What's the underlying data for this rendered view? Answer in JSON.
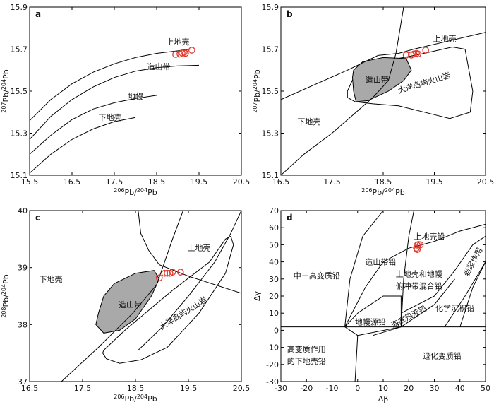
{
  "chart_data": [
    {
      "id": "a",
      "type": "scatter",
      "panel_label": "a",
      "xlabel_parts": [
        "206",
        "Pb/",
        "204",
        "Pb"
      ],
      "ylabel_parts": [
        "207",
        "Pb/",
        "204",
        "Pb"
      ],
      "xlim": [
        15.5,
        20.5
      ],
      "ylim": [
        15.1,
        15.9
      ],
      "xticks": [
        "15.5",
        "16.5",
        "17.5",
        "18.5",
        "19.5",
        "20.5"
      ],
      "yticks": [
        "15.1",
        "15.3",
        "15.5",
        "15.7",
        "15.9"
      ],
      "curves": [
        {
          "name": "上地壳",
          "points": [
            [
              15.5,
              15.36
            ],
            [
              16.0,
              15.46
            ],
            [
              16.5,
              15.535
            ],
            [
              17.0,
              15.59
            ],
            [
              17.5,
              15.63
            ],
            [
              18.0,
              15.66
            ],
            [
              18.5,
              15.68
            ],
            [
              19.0,
              15.692
            ],
            [
              19.3,
              15.7
            ]
          ]
        },
        {
          "name": "造山带",
          "points": [
            [
              15.5,
              15.27
            ],
            [
              16.0,
              15.38
            ],
            [
              16.5,
              15.46
            ],
            [
              17.0,
              15.52
            ],
            [
              17.5,
              15.565
            ],
            [
              18.0,
              15.595
            ],
            [
              18.5,
              15.612
            ],
            [
              19.0,
              15.62
            ],
            [
              19.5,
              15.623
            ]
          ]
        },
        {
          "name": "地幔",
          "points": [
            [
              15.5,
              15.2
            ],
            [
              16.0,
              15.29
            ],
            [
              16.5,
              15.365
            ],
            [
              17.0,
              15.415
            ],
            [
              17.5,
              15.445
            ],
            [
              18.0,
              15.465
            ],
            [
              18.5,
              15.48
            ]
          ]
        },
        {
          "name": "下地壳",
          "points": [
            [
              15.5,
              15.11
            ],
            [
              16.0,
              15.2
            ],
            [
              16.5,
              15.27
            ],
            [
              17.0,
              15.32
            ],
            [
              17.5,
              15.355
            ],
            [
              18.0,
              15.375
            ]
          ]
        }
      ],
      "regions": [
        {
          "label": "上地壳",
          "x": 19.0,
          "y": 15.735
        },
        {
          "label": "造山带",
          "x": 18.55,
          "y": 15.617
        },
        {
          "label": "地幔",
          "x": 18.0,
          "y": 15.477
        },
        {
          "label": "下地壳",
          "x": 17.4,
          "y": 15.375
        }
      ],
      "samples": [
        [
          18.95,
          15.675
        ],
        [
          19.05,
          15.677
        ],
        [
          19.1,
          15.682
        ],
        [
          19.15,
          15.685
        ],
        [
          19.18,
          15.68
        ],
        [
          19.33,
          15.695
        ]
      ]
    },
    {
      "id": "b",
      "type": "scatter",
      "panel_label": "b",
      "xlabel_parts": [
        "206",
        "Pb/",
        "204",
        "Pb"
      ],
      "ylabel_parts": [
        "207",
        "Pb/",
        "204",
        "Pb"
      ],
      "xlim": [
        16.5,
        20.5
      ],
      "ylim": [
        15.1,
        15.9
      ],
      "xticks": [
        "16.5",
        "17.5",
        "18.5",
        "19.5",
        "20.5"
      ],
      "yticks": [
        "15.1",
        "15.3",
        "15.5",
        "15.7",
        "15.9"
      ],
      "boundaries": [
        {
          "name": "下地壳边界",
          "points": [
            [
              16.5,
              15.46
            ],
            [
              17.8,
              15.6
            ],
            [
              18.4,
              15.67
            ],
            [
              18.8,
              15.68
            ],
            [
              19.1,
              15.7
            ],
            [
              20.5,
              15.78
            ]
          ]
        },
        {
          "name": "上地壳边界",
          "points": [
            [
              18.9,
              15.9
            ],
            [
              18.75,
              15.68
            ],
            [
              18.6,
              15.55
            ],
            [
              18.3,
              15.47
            ],
            [
              17.5,
              15.3
            ],
            [
              16.95,
              15.2
            ],
            [
              16.5,
              15.1
            ]
          ]
        }
      ],
      "gray_field": {
        "name": "造山带",
        "points": [
          [
            17.9,
            15.565
          ],
          [
            17.92,
            15.6
          ],
          [
            18.1,
            15.64
          ],
          [
            18.5,
            15.66
          ],
          [
            18.95,
            15.655
          ],
          [
            19.05,
            15.6
          ],
          [
            18.9,
            15.55
          ],
          [
            18.6,
            15.5
          ],
          [
            18.2,
            15.455
          ],
          [
            17.97,
            15.45
          ],
          [
            17.92,
            15.5
          ]
        ]
      },
      "ocean_field": {
        "name": "大洋岛屿火山岩",
        "points": [
          [
            17.8,
            15.5
          ],
          [
            17.95,
            15.58
          ],
          [
            18.4,
            15.64
          ],
          [
            18.9,
            15.66
          ],
          [
            19.3,
            15.68
          ],
          [
            19.85,
            15.71
          ],
          [
            20.1,
            15.7
          ],
          [
            20.25,
            15.5
          ],
          [
            20.2,
            15.4
          ],
          [
            19.8,
            15.37
          ],
          [
            19.3,
            15.4
          ],
          [
            18.8,
            15.43
          ],
          [
            18.3,
            15.44
          ],
          [
            17.95,
            15.45
          ],
          [
            17.8,
            15.47
          ]
        ]
      },
      "regions": [
        {
          "label": "上地壳",
          "x": 19.7,
          "y": 15.75
        },
        {
          "label": "造山带",
          "x": 18.38,
          "y": 15.555
        },
        {
          "label": "大洋岛屿火山岩",
          "x": 19.3,
          "y": 15.54
        },
        {
          "label": "下地壳",
          "x": 17.05,
          "y": 15.355
        }
      ],
      "samples": [
        [
          18.95,
          15.672
        ],
        [
          19.05,
          15.672
        ],
        [
          19.1,
          15.677
        ],
        [
          19.15,
          15.68
        ],
        [
          19.18,
          15.677
        ],
        [
          19.33,
          15.695
        ]
      ]
    },
    {
      "id": "c",
      "type": "scatter",
      "panel_label": "c",
      "xlabel_parts": [
        "206",
        "Pb/",
        "204",
        "Pb"
      ],
      "ylabel_parts": [
        "208",
        "Pb/",
        "204",
        "Pb"
      ],
      "xlim": [
        16.5,
        20.5
      ],
      "ylim": [
        37,
        40
      ],
      "xticks": [
        "16.5",
        "17.5",
        "18.5",
        "19.5",
        "20.5"
      ],
      "yticks": [
        "37",
        "38",
        "39",
        "40"
      ],
      "boundaries": [
        {
          "name": "上地壳左界",
          "points": [
            [
              18.55,
              40.0
            ],
            [
              18.6,
              39.6
            ],
            [
              18.75,
              39.3
            ],
            [
              18.95,
              39.05
            ],
            [
              19.5,
              38.85
            ],
            [
              20.5,
              38.55
            ]
          ]
        },
        {
          "name": "上地壳右界",
          "points": [
            [
              19.4,
              40.0
            ],
            [
              19.2,
              39.5
            ],
            [
              19.05,
              39.1
            ],
            [
              18.9,
              38.7
            ],
            [
              18.45,
              38.2
            ],
            [
              17.8,
              37.6
            ],
            [
              17.1,
              37.0
            ]
          ]
        },
        {
          "name": "造山带边界",
          "points": [
            [
              20.5,
              40.0
            ],
            [
              20.3,
              39.6
            ],
            [
              20.0,
              39.1
            ],
            [
              19.5,
              38.5
            ],
            [
              19.0,
              37.95
            ],
            [
              18.55,
              37.55
            ]
          ]
        }
      ],
      "gray_field": {
        "name": "造山带",
        "points": [
          [
            17.8,
            38.2
          ],
          [
            17.9,
            38.5
          ],
          [
            18.1,
            38.72
          ],
          [
            18.5,
            38.9
          ],
          [
            18.85,
            38.95
          ],
          [
            18.95,
            38.8
          ],
          [
            18.8,
            38.5
          ],
          [
            18.5,
            38.1
          ],
          [
            18.2,
            37.9
          ],
          [
            17.9,
            37.85
          ],
          [
            17.75,
            38.0
          ]
        ]
      },
      "ocean_field": {
        "name": "大洋岛屿火山岩",
        "points": [
          [
            17.9,
            37.55
          ],
          [
            18.3,
            37.9
          ],
          [
            19.2,
            38.6
          ],
          [
            19.9,
            39.1
          ],
          [
            20.2,
            39.5
          ],
          [
            20.3,
            39.55
          ],
          [
            20.35,
            39.4
          ],
          [
            20.2,
            38.9
          ],
          [
            19.7,
            38.2
          ],
          [
            19.1,
            37.6
          ],
          [
            18.6,
            37.38
          ],
          [
            18.2,
            37.32
          ],
          [
            17.95,
            37.4
          ],
          [
            17.88,
            37.5
          ]
        ]
      },
      "regions": [
        {
          "label": "上地壳",
          "x": 19.7,
          "y": 39.35
        },
        {
          "label": "下地壳",
          "x": 16.9,
          "y": 38.8
        },
        {
          "label": "造山带",
          "x": 18.4,
          "y": 38.35
        },
        {
          "label": "大洋岛屿火山岩",
          "x": 19.4,
          "y": 38.2
        }
      ],
      "samples": [
        [
          18.95,
          38.82
        ],
        [
          19.05,
          38.9
        ],
        [
          19.1,
          38.9
        ],
        [
          19.15,
          38.9
        ],
        [
          19.2,
          38.92
        ],
        [
          19.35,
          38.92
        ]
      ]
    },
    {
      "id": "d",
      "type": "scatter",
      "panel_label": "d",
      "xlabel": "Δβ",
      "ylabel": "Δγ",
      "xlim": [
        -30,
        50
      ],
      "ylim": [
        -30,
        70
      ],
      "xticks": [
        "-30",
        "-20",
        "-10",
        "0",
        "10",
        "20",
        "30",
        "40",
        "50"
      ],
      "yticks": [
        "-30",
        "-20",
        "-10",
        "0",
        "10",
        "20",
        "30",
        "40",
        "50",
        "60",
        "70"
      ],
      "boundaries": [
        {
          "name": "水平线",
          "points": [
            [
              -30,
              2
            ],
            [
              50,
              2
            ]
          ]
        },
        {
          "name": "上地壳铅下界",
          "points": [
            [
              -5,
              2
            ],
            [
              3,
              25
            ],
            [
              10,
              40
            ],
            [
              20,
              48
            ],
            [
              30,
              52
            ],
            [
              40,
              58
            ],
            [
              50,
              62
            ]
          ]
        },
        {
          "name": "造山带左界",
          "points": [
            [
              -5,
              2
            ],
            [
              -3,
              30
            ],
            [
              2,
              55
            ],
            [
              10,
              70
            ]
          ]
        },
        {
          "name": "造山带右界",
          "points": [
            [
              17,
              2
            ],
            [
              18,
              30
            ],
            [
              20,
              55
            ],
            [
              22,
              70
            ]
          ]
        },
        {
          "name": "混合铅右界",
          "points": [
            [
              17,
              10
            ],
            [
              30,
              20
            ],
            [
              38,
              35
            ],
            [
              45,
              50
            ],
            [
              50,
              55
            ]
          ]
        },
        {
          "name": "沉积铅界",
          "points": [
            [
              34,
              2
            ],
            [
              42,
              20
            ],
            [
              50,
              40
            ]
          ]
        },
        {
          "name": "风化上地壳界",
          "points": [
            [
              40,
              2
            ],
            [
              45,
              25
            ],
            [
              50,
              40
            ]
          ]
        },
        {
          "name": "地幔源铅",
          "points": [
            [
              -5,
              2
            ],
            [
              0,
              10
            ],
            [
              10,
              20
            ],
            [
              17,
              20
            ],
            [
              17,
              2
            ],
            [
              0,
              -3
            ],
            [
              -5,
              2
            ]
          ]
        },
        {
          "name": "海底热液铅",
          "points": [
            [
              6,
              -3
            ],
            [
              17,
              2
            ],
            [
              30,
              15
            ],
            [
              38,
              30
            ]
          ]
        },
        {
          "name": "底部竖线",
          "points": [
            [
              0,
              -3
            ],
            [
              -1,
              -30
            ]
          ]
        }
      ],
      "regions": [
        {
          "label": "上地壳铅",
          "x": 28,
          "y": 55
        },
        {
          "label": "造山带铅",
          "x": 9,
          "y": 40
        },
        {
          "label": "中－高变质铅",
          "x": -16,
          "y": 32
        },
        {
          "label": "上地壳和地幔",
          "x": 24,
          "y": 33
        },
        {
          "label": "俯冲带混合铅",
          "x": 24,
          "y": 26
        },
        {
          "label": "化学沉积铅",
          "x": 38,
          "y": 13
        },
        {
          "label": "岩浆作用",
          "x": 45,
          "y": 40
        },
        {
          "label": "地幔源铅",
          "x": 5,
          "y": 5
        },
        {
          "label": "海底热液铅",
          "x": 20,
          "y": 8
        },
        {
          "label": "高变质作用",
          "x": -20,
          "y": -11
        },
        {
          "label": "的下地壳铅",
          "x": -20,
          "y": -18
        },
        {
          "label": "退化变质铅",
          "x": 33,
          "y": -15
        }
      ],
      "samples": [
        [
          23,
          48
        ],
        [
          23.3,
          49.8
        ],
        [
          23.8,
          50.2
        ],
        [
          24.5,
          50
        ],
        [
          23.3,
          47.2
        ]
      ]
    }
  ]
}
